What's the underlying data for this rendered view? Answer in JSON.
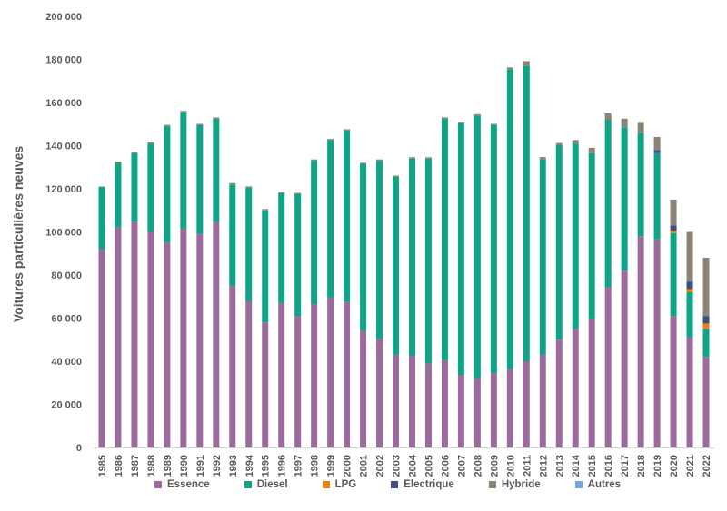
{
  "chart_data": {
    "type": "bar",
    "stacked": true,
    "title": "",
    "xlabel": "",
    "ylabel": "Voitures particulières neuves",
    "ylim": [
      0,
      200000
    ],
    "yticks": [
      "0",
      "20 000",
      "40 000",
      "60 000",
      "80 000",
      "100 000",
      "120 000",
      "140 000",
      "160 000",
      "180 000",
      "200 000"
    ],
    "grid": false,
    "legend_position": "bottom",
    "categories": [
      "1985",
      "1986",
      "1987",
      "1988",
      "1989",
      "1990",
      "1991",
      "1992",
      "1993",
      "1994",
      "1995",
      "1996",
      "1997",
      "1998",
      "1999",
      "2000",
      "2001",
      "2002",
      "2003",
      "2004",
      "2005",
      "2006",
      "2007",
      "2008",
      "2009",
      "2010",
      "2011",
      "2012",
      "2013",
      "2014",
      "2015",
      "2016",
      "2017",
      "2018",
      "2019",
      "2020",
      "2021",
      "2022"
    ],
    "series": [
      {
        "name": "Essence",
        "color": "#9B6B9E",
        "values": [
          92000,
          102000,
          104500,
          100000,
          95000,
          101500,
          99000,
          104500,
          75000,
          68000,
          58000,
          67000,
          61000,
          66500,
          69500,
          67500,
          54000,
          50500,
          43000,
          42500,
          39000,
          40500,
          33500,
          32000,
          34500,
          36500,
          40000,
          43000,
          50000,
          55000,
          59500,
          74500,
          82000,
          98000,
          96500,
          61000,
          51000,
          42000
        ]
      },
      {
        "name": "Diesel",
        "color": "#0FA486",
        "values": [
          29000,
          30000,
          32000,
          41000,
          54000,
          54000,
          50500,
          48000,
          47000,
          52500,
          52000,
          51000,
          56500,
          66500,
          73000,
          79500,
          77500,
          82500,
          82500,
          91500,
          95000,
          112000,
          117000,
          122000,
          115000,
          139000,
          137000,
          90500,
          90000,
          86000,
          77000,
          77500,
          66500,
          48000,
          40000,
          38500,
          21000,
          13000
        ]
      },
      {
        "name": "LPG",
        "color": "#F07F09",
        "values": [
          0,
          0,
          0,
          0,
          0,
          0,
          0,
          0,
          0,
          0,
          0,
          0,
          0,
          0,
          0,
          0,
          0,
          0,
          0,
          0,
          0,
          0,
          0,
          0,
          0,
          0,
          0,
          0,
          0,
          0,
          0,
          0,
          0,
          0,
          0,
          1000,
          1500,
          2500
        ]
      },
      {
        "name": "Electrique",
        "color": "#3F4E86",
        "values": [
          0,
          0,
          0,
          0,
          0,
          0,
          0,
          0,
          0,
          0,
          0,
          0,
          0,
          0,
          0,
          0,
          0,
          0,
          0,
          0,
          0,
          0,
          0,
          0,
          0,
          0,
          0,
          0,
          0,
          0,
          0,
          0,
          0,
          0,
          1500,
          2500,
          3500,
          3500
        ]
      },
      {
        "name": "Hybride",
        "color": "#8B8375",
        "values": [
          0,
          600,
          600,
          600,
          600,
          600,
          600,
          600,
          600,
          600,
          600,
          600,
          600,
          600,
          600,
          600,
          600,
          600,
          600,
          600,
          600,
          600,
          600,
          600,
          600,
          800,
          2200,
          1200,
          1200,
          1600,
          2500,
          3000,
          4000,
          5000,
          6000,
          12000,
          23000,
          27000
        ]
      },
      {
        "name": "Autres",
        "color": "#6FA8DC",
        "values": [
          0,
          0,
          0,
          0,
          0,
          0,
          0,
          0,
          0,
          0,
          0,
          0,
          0,
          0,
          0,
          0,
          0,
          0,
          0,
          0,
          0,
          0,
          0,
          0,
          0,
          0,
          0,
          0,
          0,
          0,
          0,
          0,
          0,
          0,
          0,
          0,
          0,
          0
        ]
      }
    ]
  }
}
